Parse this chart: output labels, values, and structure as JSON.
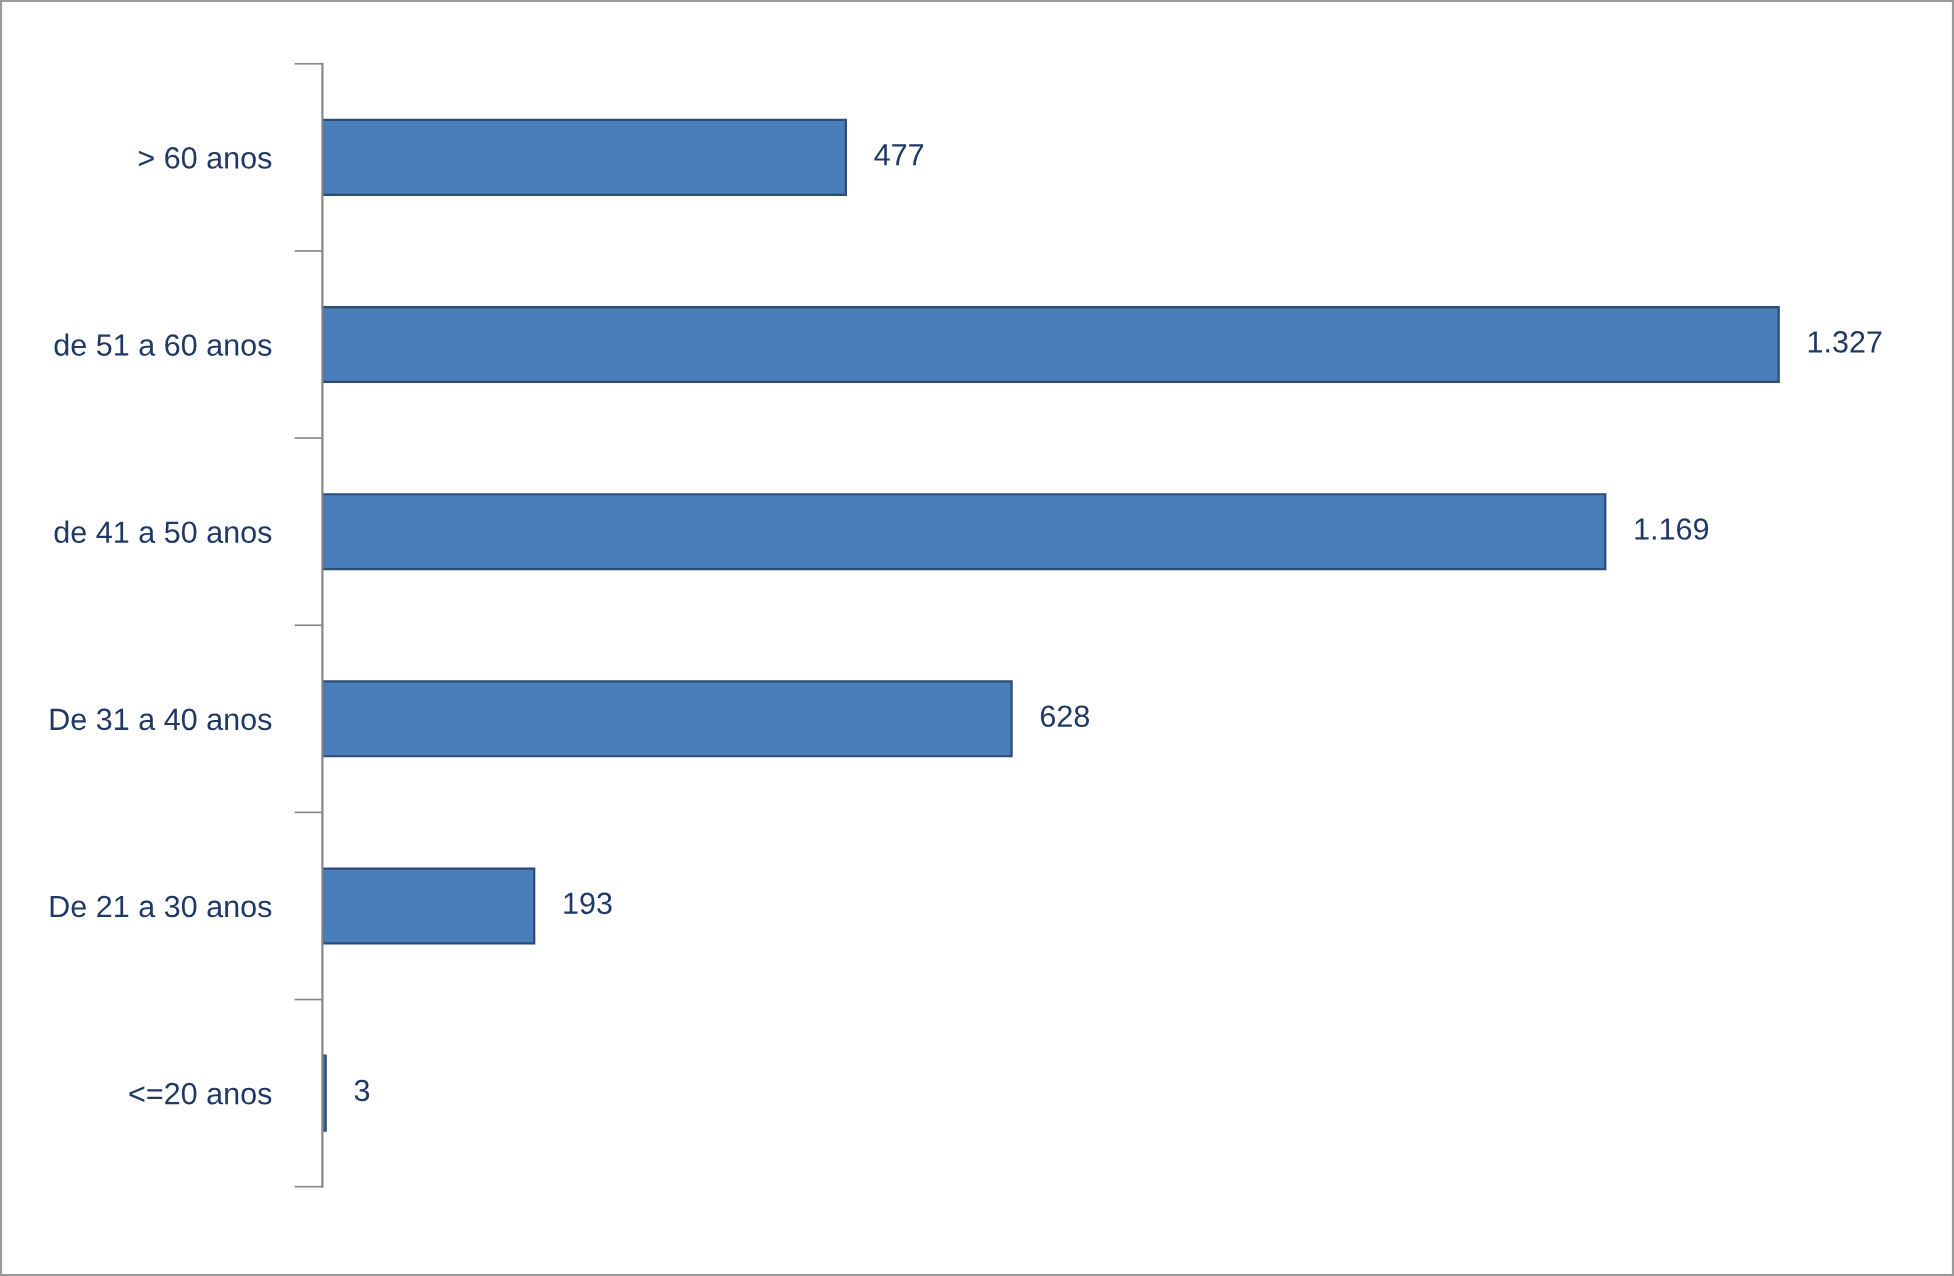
{
  "chart_data": {
    "type": "bar",
    "orientation": "horizontal",
    "categories": [
      "> 60 anos",
      "de 51 a 60 anos",
      "de 41 a 50 anos",
      "De 31 a 40 anos",
      "De 21 a 30 anos",
      "<=20 anos"
    ],
    "values": [
      477,
      1327,
      1169,
      628,
      193,
      3
    ],
    "value_labels": [
      "477",
      "1.327",
      "1.169",
      "628",
      "193",
      "3"
    ],
    "color": "#4a7ebb",
    "grid": false,
    "legend": false,
    "tick_labels": "y"
  }
}
